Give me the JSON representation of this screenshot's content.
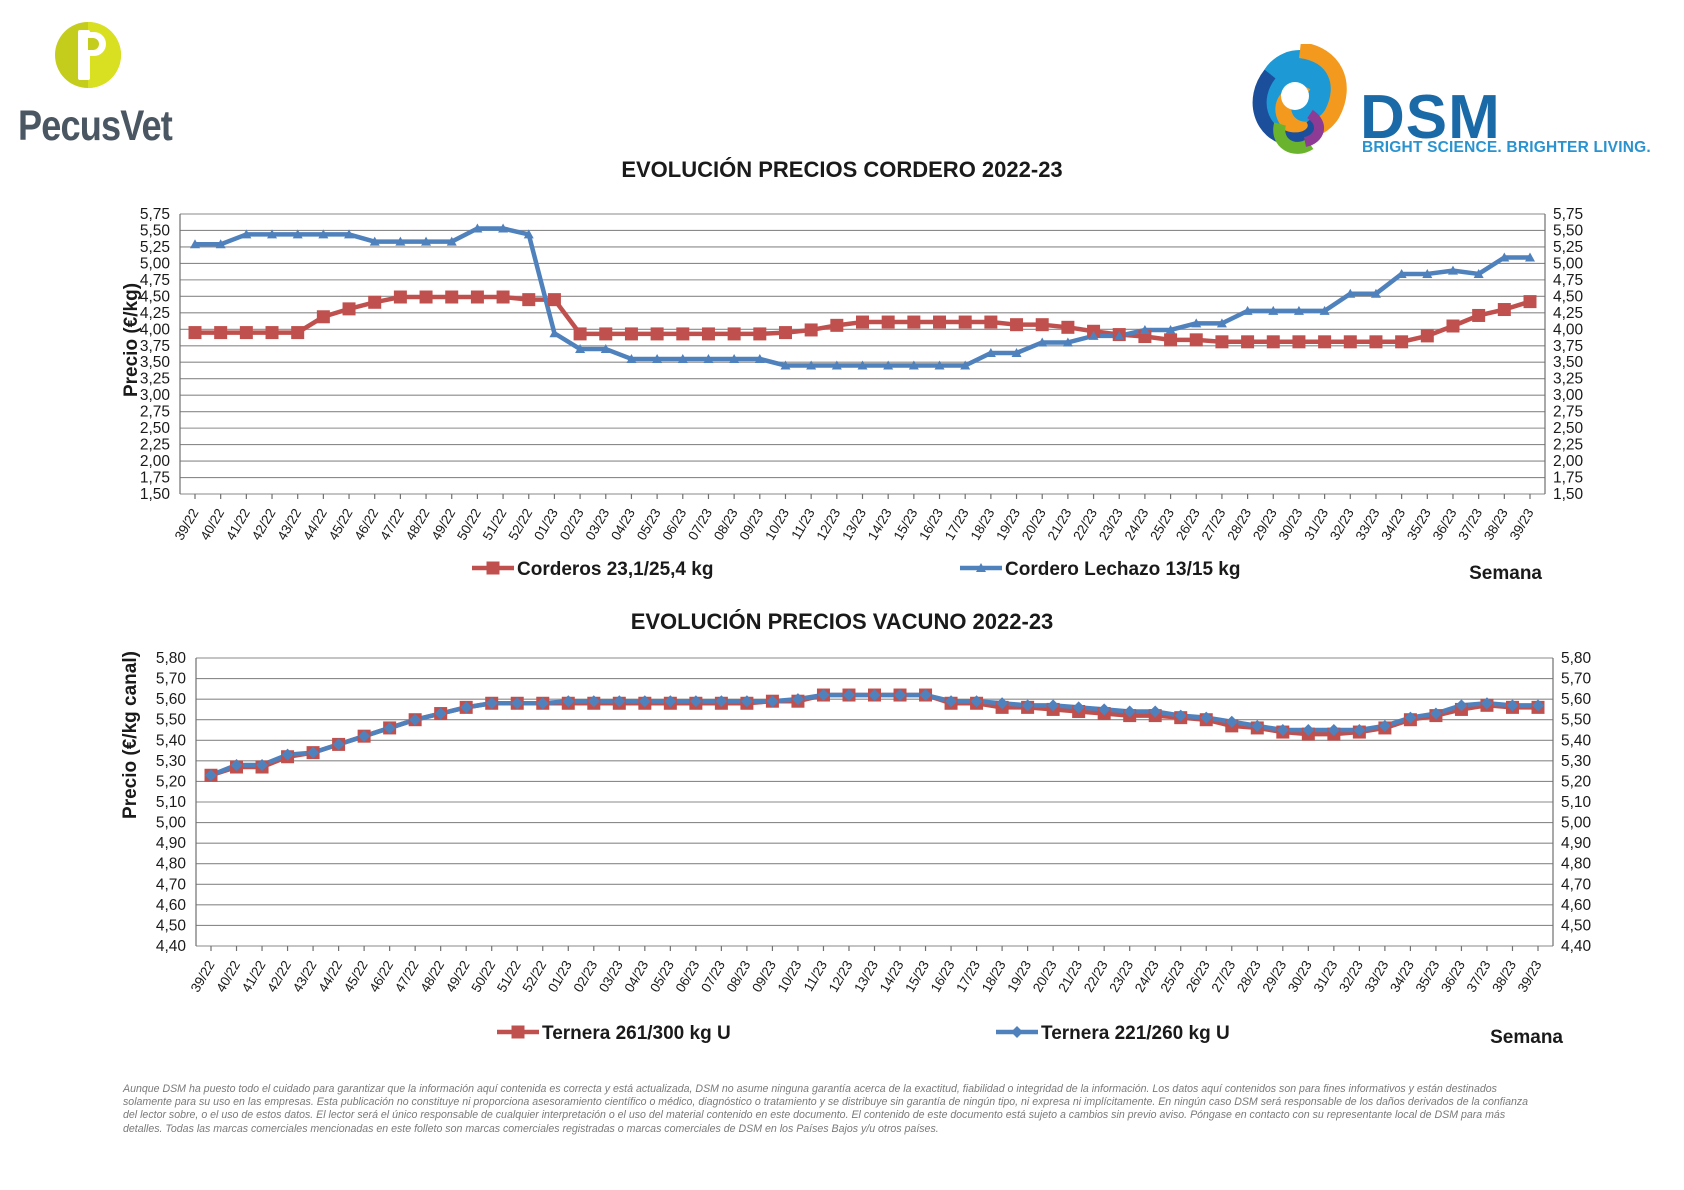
{
  "brand_left": {
    "name": "PecusVet",
    "letter": "P"
  },
  "brand_right": {
    "name": "DSM",
    "tagline": "BRIGHT SCIENCE. BRIGHTER LIVING."
  },
  "colors": {
    "red": "#c0504d",
    "blue": "#4f81bd",
    "grid": "#8a8a8a",
    "pecus_green": "#c4cd1b",
    "pecus_gray": "#4a5662",
    "dsm_blue": "#1b6aa8"
  },
  "weeks": [
    "39/22",
    "40/22",
    "41/22",
    "42/22",
    "43/22",
    "44/22",
    "45/22",
    "46/22",
    "47/22",
    "48/22",
    "49/22",
    "50/22",
    "51/22",
    "52/22",
    "01/23",
    "02/23",
    "03/23",
    "04/23",
    "05/23",
    "06/23",
    "07/23",
    "08/23",
    "09/23",
    "10/23",
    "11/23",
    "12/23",
    "13/23",
    "14/23",
    "15/23",
    "16/23",
    "17/23",
    "18/23",
    "19/23",
    "20/23",
    "21/23",
    "22/23",
    "23/23",
    "24/23",
    "25/23",
    "26/23",
    "27/23",
    "28/23",
    "29/23",
    "30/23",
    "31/23",
    "32/23",
    "33/23",
    "34/23",
    "35/23",
    "36/23",
    "37/23",
    "38/23",
    "39/23"
  ],
  "chart_data": [
    {
      "type": "line",
      "title": "EVOLUCIÓN PRECIOS CORDERO 2022-23",
      "ylabel": "Precio (€/kg)",
      "xlabel": "Semana",
      "ylim": [
        1.5,
        5.75
      ],
      "yticks": [
        "1,50",
        "1,75",
        "2,00",
        "2,25",
        "2,50",
        "2,75",
        "3,00",
        "3,25",
        "3,50",
        "3,75",
        "4,00",
        "4,25",
        "4,50",
        "4,75",
        "5,00",
        "5,25",
        "5,50",
        "5,75"
      ],
      "ytick_values": [
        1.5,
        1.75,
        2.0,
        2.25,
        2.5,
        2.75,
        3.0,
        3.25,
        3.5,
        3.75,
        4.0,
        4.25,
        4.5,
        4.75,
        5.0,
        5.25,
        5.5,
        5.75
      ],
      "grid": true,
      "legend_position": "bottom",
      "series": [
        {
          "name": "Corderos 23,1/25,4 kg",
          "color": "#c0504d",
          "marker": "square",
          "values": [
            3.95,
            3.95,
            3.95,
            3.95,
            3.95,
            4.19,
            4.31,
            4.41,
            4.49,
            4.49,
            4.49,
            4.49,
            4.49,
            4.45,
            4.45,
            3.93,
            3.93,
            3.93,
            3.93,
            3.93,
            3.93,
            3.93,
            3.93,
            3.95,
            3.99,
            4.06,
            4.11,
            4.11,
            4.11,
            4.11,
            4.11,
            4.11,
            4.07,
            4.07,
            4.03,
            3.97,
            3.92,
            3.89,
            3.84,
            3.84,
            3.81,
            3.81,
            3.81,
            3.81,
            3.81,
            3.81,
            3.81,
            3.81,
            3.9,
            4.05,
            4.21,
            4.3,
            4.42
          ]
        },
        {
          "name": "Cordero Lechazo 13/15 kg",
          "color": "#4f81bd",
          "marker": "triangle",
          "values": [
            5.29,
            5.29,
            5.44,
            5.44,
            5.44,
            5.44,
            5.44,
            5.33,
            5.33,
            5.33,
            5.33,
            5.53,
            5.53,
            5.44,
            3.94,
            3.7,
            3.7,
            3.55,
            3.55,
            3.55,
            3.55,
            3.55,
            3.55,
            3.45,
            3.45,
            3.45,
            3.45,
            3.45,
            3.45,
            3.45,
            3.45,
            3.64,
            3.64,
            3.8,
            3.8,
            3.9,
            3.9,
            3.99,
            3.99,
            4.09,
            4.09,
            4.28,
            4.28,
            4.28,
            4.28,
            4.54,
            4.54,
            4.84,
            4.84,
            4.89,
            4.84,
            5.09,
            5.09
          ]
        }
      ]
    },
    {
      "type": "line",
      "title": "EVOLUCIÓN PRECIOS VACUNO 2022-23",
      "ylabel": "Precio (€/kg canal)",
      "xlabel": "Semana",
      "ylim": [
        4.4,
        5.8
      ],
      "yticks": [
        "4,40",
        "4,50",
        "4,60",
        "4,70",
        "4,80",
        "4,90",
        "5,00",
        "5,10",
        "5,20",
        "5,30",
        "5,40",
        "5,50",
        "5,60",
        "5,70",
        "5,80"
      ],
      "ytick_values": [
        4.4,
        4.5,
        4.6,
        4.7,
        4.8,
        4.9,
        5.0,
        5.1,
        5.2,
        5.3,
        5.4,
        5.5,
        5.6,
        5.7,
        5.8
      ],
      "grid": true,
      "legend_position": "bottom",
      "series": [
        {
          "name": "Ternera 261/300 kg U",
          "color": "#c0504d",
          "marker": "square",
          "values": [
            5.23,
            5.27,
            5.27,
            5.32,
            5.34,
            5.38,
            5.42,
            5.46,
            5.5,
            5.53,
            5.56,
            5.58,
            5.58,
            5.58,
            5.58,
            5.58,
            5.58,
            5.58,
            5.58,
            5.58,
            5.58,
            5.58,
            5.59,
            5.59,
            5.62,
            5.62,
            5.62,
            5.62,
            5.62,
            5.58,
            5.58,
            5.56,
            5.56,
            5.55,
            5.54,
            5.53,
            5.52,
            5.52,
            5.51,
            5.5,
            5.47,
            5.46,
            5.44,
            5.43,
            5.43,
            5.44,
            5.46,
            5.5,
            5.52,
            5.55,
            5.57,
            5.56,
            5.56
          ]
        },
        {
          "name": "Ternera 221/260 kg U",
          "color": "#4f81bd",
          "marker": "diamond",
          "values": [
            5.23,
            5.28,
            5.28,
            5.33,
            5.34,
            5.38,
            5.42,
            5.46,
            5.5,
            5.53,
            5.56,
            5.58,
            5.58,
            5.58,
            5.59,
            5.59,
            5.59,
            5.59,
            5.59,
            5.59,
            5.59,
            5.59,
            5.59,
            5.6,
            5.62,
            5.62,
            5.62,
            5.62,
            5.62,
            5.59,
            5.59,
            5.58,
            5.57,
            5.57,
            5.56,
            5.55,
            5.54,
            5.54,
            5.52,
            5.51,
            5.49,
            5.47,
            5.45,
            5.45,
            5.45,
            5.45,
            5.47,
            5.51,
            5.53,
            5.57,
            5.58,
            5.57,
            5.57
          ]
        }
      ]
    }
  ],
  "disclaimer": "Aunque DSM ha puesto todo el cuidado para garantizar que la información aquí contenida es correcta y está actualizada, DSM no asume ninguna garantía acerca de la exactitud, fiabilidad o integridad de la información. Los datos aquí contenidos son para fines informativos y están destinados solamente para su uso en las empresas. Esta publicación no constituye ni proporciona asesoramiento científico o médico, diagnóstico o tratamiento y se distribuye sin garantía de ningún tipo, ni expresa ni implícitamente. En ningún caso DSM será responsable de los daños derivados de la confianza del lector sobre, o el uso de estos datos. El lector será el único responsable de cualquier interpretación o el uso del material contenido en este documento. El contenido de este documento está sujeto a cambios sin previo aviso. Póngase en contacto con su representante local de DSM para más detalles. Todas las marcas comerciales mencionadas en este folleto son marcas comerciales registradas o marcas comerciales de DSM en los Países Bajos y/u otros países."
}
